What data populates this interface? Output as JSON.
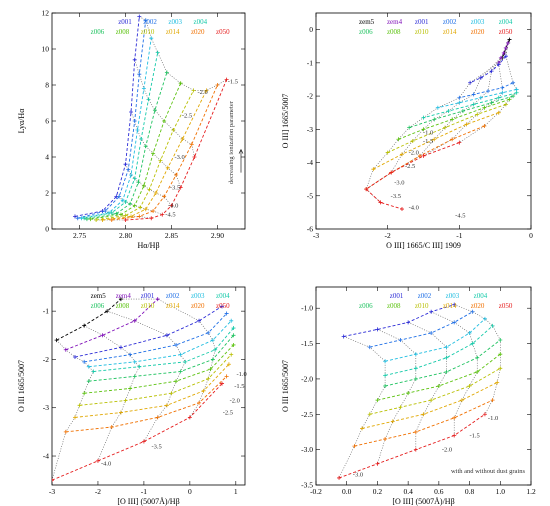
{
  "legend_colors": {
    "zem5": "#000000",
    "zem4": "#7f0fb8",
    "z001": "#2b2bd6",
    "z002": "#1f6fe6",
    "z003": "#1fbde0",
    "z004": "#12c9a8",
    "z006": "#1ec25f",
    "z008": "#5bc20e",
    "z010": "#b8bf00",
    "z014": "#e0a700",
    "z020": "#f07000",
    "z050": "#e51b1b"
  },
  "chart_data": [
    {
      "type": "line",
      "panel": "top-left",
      "xlabel": "Hα/Hβ",
      "ylabel": "Lyα/Hα",
      "xlim": [
        2.72,
        2.93
      ],
      "ylim": [
        0,
        12
      ],
      "xticks": [
        2.75,
        2.8,
        2.85,
        2.9
      ],
      "xtick_labels": [
        "2.75",
        "2.80",
        "2.85",
        "2.90"
      ],
      "yticks": [
        0,
        2,
        4,
        6,
        8,
        10,
        12
      ],
      "ytick_labels": [
        "0",
        "2",
        "4",
        "6",
        "8",
        "10",
        "12"
      ],
      "legend": [
        [
          "z001",
          "z002",
          "z003",
          "z004"
        ],
        [
          "z006",
          "z008",
          "z010",
          "z014",
          "z020",
          "z050"
        ]
      ],
      "annotation": "decreasing ionization parameter",
      "point_labels": [
        {
          "text": "-1.5",
          "x": 2.908,
          "y": 8.2
        },
        {
          "text": "-2.0",
          "x": 2.875,
          "y": 7.6
        },
        {
          "text": "-2.5",
          "x": 2.858,
          "y": 6.3
        },
        {
          "text": "-3.0",
          "x": 2.85,
          "y": 4.0
        },
        {
          "text": "-3.5",
          "x": 2.845,
          "y": 2.3
        },
        {
          "text": "-4.0",
          "x": 2.843,
          "y": 1.3
        },
        {
          "text": "-4.5",
          "x": 2.84,
          "y": 0.8
        }
      ],
      "series": [
        {
          "name": "z001",
          "x": [
            2.745,
            2.775,
            2.79,
            2.8,
            2.806,
            2.81,
            2.815
          ],
          "y": [
            0.7,
            1.0,
            1.8,
            3.6,
            6.5,
            9.4,
            11.8
          ]
        },
        {
          "name": "z002",
          "x": [
            2.748,
            2.778,
            2.793,
            2.803,
            2.81,
            2.815,
            2.822
          ],
          "y": [
            0.6,
            1.0,
            1.8,
            3.3,
            6.0,
            8.6,
            11.6
          ]
        },
        {
          "name": "z003",
          "x": [
            2.752,
            2.782,
            2.797,
            2.806,
            2.813,
            2.82,
            2.828
          ],
          "y": [
            0.6,
            0.9,
            1.6,
            3.0,
            5.5,
            7.8,
            10.6
          ]
        },
        {
          "name": "z004",
          "x": [
            2.755,
            2.785,
            2.8,
            2.81,
            2.817,
            2.825,
            2.835
          ],
          "y": [
            0.6,
            0.9,
            1.5,
            2.8,
            5.0,
            7.2,
            9.8
          ]
        },
        {
          "name": "z006",
          "x": [
            2.758,
            2.79,
            2.805,
            2.814,
            2.822,
            2.832,
            2.845
          ],
          "y": [
            0.55,
            0.85,
            1.4,
            2.6,
            4.6,
            6.6,
            8.7
          ]
        },
        {
          "name": "z008",
          "x": [
            2.762,
            2.795,
            2.81,
            2.82,
            2.83,
            2.842,
            2.86
          ],
          "y": [
            0.55,
            0.8,
            1.3,
            2.4,
            4.2,
            6.0,
            8.1
          ]
        },
        {
          "name": "z010",
          "x": [
            2.768,
            2.8,
            2.816,
            2.826,
            2.838,
            2.852,
            2.874
          ],
          "y": [
            0.5,
            0.75,
            1.2,
            2.2,
            3.8,
            5.5,
            7.7
          ]
        },
        {
          "name": "z014",
          "x": [
            2.775,
            2.806,
            2.822,
            2.833,
            2.846,
            2.862,
            2.888
          ],
          "y": [
            0.5,
            0.7,
            1.1,
            2.0,
            3.4,
            5.0,
            7.7
          ]
        },
        {
          "name": "z020",
          "x": [
            2.785,
            2.815,
            2.83,
            2.842,
            2.855,
            2.872,
            2.9
          ],
          "y": [
            0.5,
            0.7,
            1.0,
            1.8,
            3.0,
            4.7,
            8.0
          ]
        },
        {
          "name": "z050",
          "x": [
            2.8,
            2.828,
            2.84,
            2.85,
            2.86,
            2.875,
            2.91
          ],
          "y": [
            0.5,
            0.6,
            0.8,
            1.3,
            2.3,
            4.0,
            8.3
          ]
        }
      ]
    },
    {
      "type": "line",
      "panel": "top-right",
      "xlabel": "O III] 1665/C III] 1909",
      "ylabel": "O III] 1665/5007",
      "xlim": [
        -3,
        0
      ],
      "ylim": [
        -6,
        0.5
      ],
      "xticks": [
        -3,
        -2,
        -1,
        0
      ],
      "xtick_labels": [
        "-3",
        "-2",
        "-1",
        "0"
      ],
      "yticks": [
        -6,
        -5,
        -4,
        -3,
        -2,
        -1,
        0
      ],
      "ytick_labels": [
        "-6",
        "-5",
        "-4",
        "-3",
        "-2",
        "-1",
        "0"
      ],
      "legend": [
        [
          "zem5",
          "zem4",
          "z001",
          "z002",
          "z003",
          "z004"
        ],
        [
          "z006",
          "z008",
          "z010",
          "z014",
          "z020",
          "z050"
        ]
      ],
      "point_labels": [
        {
          "text": "-1.0",
          "x": -1.55,
          "y": -3.1
        },
        {
          "text": "-1.5",
          "x": -1.55,
          "y": -3.35
        },
        {
          "text": "-2.0",
          "x": -1.75,
          "y": -3.7
        },
        {
          "text": "-2.5",
          "x": -1.8,
          "y": -4.1
        },
        {
          "text": "-3.0",
          "x": -1.95,
          "y": -4.6
        },
        {
          "text": "-3.5",
          "x": -2.0,
          "y": -5.0
        },
        {
          "text": "-4.0",
          "x": -1.75,
          "y": -5.35
        },
        {
          "text": "-4.5",
          "x": -1.1,
          "y": -5.6
        }
      ],
      "series": [
        {
          "name": "zem5",
          "x": [
            -0.3,
            -0.32,
            -0.35,
            -0.37,
            -0.4
          ],
          "y": [
            -0.3,
            -0.4,
            -0.55,
            -0.7,
            -0.85
          ]
        },
        {
          "name": "zem4",
          "x": [
            -0.32,
            -0.35,
            -0.38,
            -0.42,
            -0.45
          ],
          "y": [
            -0.4,
            -0.55,
            -0.7,
            -0.85,
            -1.0
          ]
        },
        {
          "name": "z001",
          "x": [
            -0.35,
            -0.45,
            -0.55,
            -0.7,
            -0.85
          ],
          "y": [
            -0.8,
            -1.05,
            -1.25,
            -1.45,
            -1.6
          ]
        },
        {
          "name": "z002",
          "x": [
            -0.25,
            -0.4,
            -0.6,
            -0.8,
            -1.0
          ],
          "y": [
            -1.6,
            -1.75,
            -1.85,
            -1.95,
            -2.05
          ]
        },
        {
          "name": "z003",
          "x": [
            -0.2,
            -0.4,
            -0.7,
            -1.0,
            -1.3
          ],
          "y": [
            -1.8,
            -1.9,
            -2.05,
            -2.2,
            -2.35
          ]
        },
        {
          "name": "z004",
          "x": [
            -0.2,
            -0.45,
            -0.8,
            -1.15,
            -1.5
          ],
          "y": [
            -1.9,
            -2.05,
            -2.25,
            -2.45,
            -2.65
          ]
        },
        {
          "name": "z006",
          "x": [
            -0.25,
            -0.55,
            -0.95,
            -1.35,
            -1.7
          ],
          "y": [
            -2.0,
            -2.2,
            -2.45,
            -2.7,
            -2.95
          ]
        },
        {
          "name": "z008",
          "x": [
            -0.3,
            -0.65,
            -1.1,
            -1.5,
            -1.85
          ],
          "y": [
            -2.1,
            -2.35,
            -2.7,
            -3.0,
            -3.3
          ]
        },
        {
          "name": "z010",
          "x": [
            -0.35,
            -0.75,
            -1.2,
            -1.65,
            -2.0
          ],
          "y": [
            -2.25,
            -2.55,
            -2.95,
            -3.35,
            -3.7
          ]
        },
        {
          "name": "z014",
          "x": [
            -0.45,
            -0.9,
            -1.35,
            -1.8,
            -2.2
          ],
          "y": [
            -2.5,
            -2.85,
            -3.3,
            -3.75,
            -4.2
          ]
        },
        {
          "name": "z020",
          "x": [
            -0.65,
            -1.1,
            -1.55,
            -1.95,
            -2.3
          ],
          "y": [
            -2.9,
            -3.3,
            -3.8,
            -4.3,
            -4.8
          ]
        },
        {
          "name": "z050",
          "x": [
            -1.0,
            -1.5,
            -1.95,
            -2.3,
            -2.1,
            -1.8
          ],
          "y": [
            -3.4,
            -3.8,
            -4.3,
            -4.8,
            -5.2,
            -5.4
          ]
        }
      ]
    },
    {
      "type": "line",
      "panel": "bottom-left",
      "xlabel": "[O III] (5007Å)/Hβ",
      "ylabel": "O III 1665/5007",
      "xlim": [
        -3,
        1.2
      ],
      "ylim": [
        -4.6,
        -0.5
      ],
      "xticks": [
        -3,
        -2,
        -1,
        0,
        1
      ],
      "xtick_labels": [
        "-3",
        "-2",
        "-1",
        "0",
        "1"
      ],
      "yticks": [
        -4,
        -3,
        -2,
        -1
      ],
      "ytick_labels": [
        "-4",
        "-3",
        "-2",
        "-1"
      ],
      "legend": [
        [
          "zem5",
          "zem4",
          "z001",
          "z002",
          "z003",
          "z004"
        ],
        [
          "z006",
          "z008",
          "z010",
          "z014",
          "z020",
          "z050"
        ]
      ],
      "point_labels": [
        {
          "text": "-1.0",
          "x": 0.95,
          "y": -2.3
        },
        {
          "text": "-1.5",
          "x": 0.9,
          "y": -2.55
        },
        {
          "text": "-2.0",
          "x": 0.8,
          "y": -2.85
        },
        {
          "text": "-2.5",
          "x": 0.65,
          "y": -3.1
        },
        {
          "text": "-3.5",
          "x": -0.9,
          "y": -3.8
        },
        {
          "text": "-4.0",
          "x": -2.0,
          "y": -4.15
        }
      ],
      "series": [
        {
          "name": "zem5",
          "x": [
            -2.9,
            -2.3,
            -1.8,
            -1.5
          ],
          "y": [
            -1.6,
            -1.3,
            -1.0,
            -0.75
          ]
        },
        {
          "name": "zem4",
          "x": [
            -2.7,
            -1.9,
            -1.2,
            -0.7
          ],
          "y": [
            -1.8,
            -1.5,
            -1.2,
            -0.75
          ]
        },
        {
          "name": "z001",
          "x": [
            -2.5,
            -1.5,
            -0.5,
            0.2,
            0.7
          ],
          "y": [
            -1.95,
            -1.75,
            -1.5,
            -1.2,
            -0.9
          ]
        },
        {
          "name": "z002",
          "x": [
            -2.3,
            -1.3,
            -0.3,
            0.4,
            0.8
          ],
          "y": [
            -2.05,
            -1.9,
            -1.7,
            -1.45,
            -1.05
          ]
        },
        {
          "name": "z003",
          "x": [
            -2.2,
            -1.2,
            -0.2,
            0.5,
            0.9
          ],
          "y": [
            -2.15,
            -2.05,
            -1.9,
            -1.6,
            -1.2
          ]
        },
        {
          "name": "z004",
          "x": [
            -2.1,
            -1.1,
            -0.1,
            0.55,
            0.95
          ],
          "y": [
            -2.25,
            -2.15,
            -2.05,
            -1.8,
            -1.35
          ]
        },
        {
          "name": "z006",
          "x": [
            -2.2,
            -1.2,
            -0.2,
            0.5,
            0.95
          ],
          "y": [
            -2.45,
            -2.35,
            -2.25,
            -2.0,
            -1.5
          ]
        },
        {
          "name": "z008",
          "x": [
            -2.3,
            -1.3,
            -0.3,
            0.45,
            0.95
          ],
          "y": [
            -2.7,
            -2.6,
            -2.45,
            -2.2,
            -1.7
          ]
        },
        {
          "name": "z010",
          "x": [
            -2.4,
            -1.4,
            -0.4,
            0.4,
            0.9
          ],
          "y": [
            -2.95,
            -2.85,
            -2.7,
            -2.4,
            -1.9
          ]
        },
        {
          "name": "z014",
          "x": [
            -2.5,
            -1.5,
            -0.5,
            0.3,
            0.85
          ],
          "y": [
            -3.2,
            -3.1,
            -2.95,
            -2.65,
            -2.1
          ]
        },
        {
          "name": "z020",
          "x": [
            -2.7,
            -1.7,
            -0.7,
            0.2,
            0.8
          ],
          "y": [
            -3.5,
            -3.4,
            -3.2,
            -2.9,
            -2.35
          ]
        },
        {
          "name": "z050",
          "x": [
            -3.0,
            -2.0,
            -1.0,
            0.0,
            0.7
          ],
          "y": [
            -4.5,
            -4.1,
            -3.7,
            -3.2,
            -2.5
          ]
        }
      ]
    },
    {
      "type": "line",
      "panel": "bottom-right",
      "xlabel": "[O III] (5007Å)/Hβ",
      "ylabel": "O III 1665/5007",
      "xlim": [
        -0.2,
        1.2
      ],
      "ylim": [
        -3.5,
        -0.7
      ],
      "xticks": [
        -0.2,
        0,
        0.2,
        0.4,
        0.6,
        0.8,
        1.0,
        1.2
      ],
      "xtick_labels": [
        "-0.2",
        "0.0",
        "0.2",
        "0.4",
        "0.6",
        "0.8",
        "1.0",
        "1.2"
      ],
      "yticks": [
        -3.5,
        -3.0,
        -2.5,
        -2.0,
        -1.5,
        -1.0
      ],
      "ytick_labels": [
        "-3.5",
        "-3.0",
        "-2.5",
        "-2.0",
        "-1.5",
        "-1.0"
      ],
      "legend": [
        [
          "z001",
          "z002",
          "z003",
          "z004"
        ],
        [
          "z006",
          "z008",
          "z010",
          "z014",
          "z020",
          "z050"
        ]
      ],
      "annotation": "with and without dust grains",
      "point_labels": [
        {
          "text": "-1.0",
          "x": 0.9,
          "y": -2.55
        },
        {
          "text": "-1.5",
          "x": 0.78,
          "y": -2.8
        },
        {
          "text": "-2.0",
          "x": 0.6,
          "y": -3.0
        },
        {
          "text": "-3.0",
          "x": 0.02,
          "y": -3.35
        }
      ],
      "series": [
        {
          "name": "z001",
          "x": [
            -0.02,
            0.2,
            0.4,
            0.55,
            0.7
          ],
          "y": [
            -1.4,
            -1.3,
            -1.2,
            -1.05,
            -0.95
          ]
        },
        {
          "name": "z002",
          "x": [
            0.15,
            0.35,
            0.55,
            0.7,
            0.82
          ],
          "y": [
            -1.55,
            -1.45,
            -1.35,
            -1.2,
            -1.05
          ]
        },
        {
          "name": "z003",
          "x": [
            0.25,
            0.45,
            0.65,
            0.8,
            0.9
          ],
          "y": [
            -1.75,
            -1.65,
            -1.55,
            -1.35,
            -1.15
          ]
        },
        {
          "name": "z004",
          "x": [
            0.25,
            0.45,
            0.65,
            0.82,
            0.95
          ],
          "y": [
            -1.95,
            -1.85,
            -1.7,
            -1.5,
            -1.25
          ]
        },
        {
          "name": "z006",
          "x": [
            0.25,
            0.45,
            0.65,
            0.85,
            1.0
          ],
          "y": [
            -2.1,
            -2.0,
            -1.9,
            -1.7,
            -1.45
          ]
        },
        {
          "name": "z008",
          "x": [
            0.2,
            0.4,
            0.6,
            0.85,
            1.0
          ],
          "y": [
            -2.3,
            -2.2,
            -2.1,
            -1.9,
            -1.65
          ]
        },
        {
          "name": "z010",
          "x": [
            0.15,
            0.35,
            0.55,
            0.8,
            1.0
          ],
          "y": [
            -2.5,
            -2.4,
            -2.3,
            -2.1,
            -1.85
          ]
        },
        {
          "name": "z014",
          "x": [
            0.1,
            0.3,
            0.5,
            0.75,
            0.98
          ],
          "y": [
            -2.7,
            -2.6,
            -2.5,
            -2.3,
            -2.05
          ]
        },
        {
          "name": "z020",
          "x": [
            0.05,
            0.25,
            0.45,
            0.7,
            0.95
          ],
          "y": [
            -2.95,
            -2.85,
            -2.75,
            -2.55,
            -2.3
          ]
        },
        {
          "name": "z050",
          "x": [
            -0.05,
            0.2,
            0.45,
            0.7,
            0.9
          ],
          "y": [
            -3.4,
            -3.2,
            -3.0,
            -2.8,
            -2.5
          ]
        }
      ]
    }
  ]
}
